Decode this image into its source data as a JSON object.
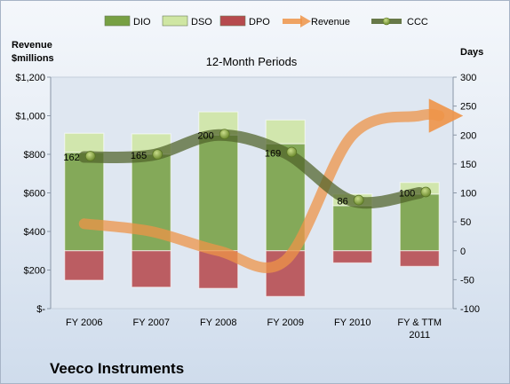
{
  "company": "Veeco Instruments",
  "chart_data": {
    "type": "bar",
    "subtitle": "12-Month Periods",
    "ylabel_left": "Revenue\n$millions",
    "ylabel_right": "Days",
    "categories": [
      "FY 2006",
      "FY 2007",
      "FY 2008",
      "FY 2009",
      "FY 2010",
      "FY & TTM\n2011"
    ],
    "left_axis": {
      "range": [
        0,
        1200
      ],
      "ticks": [
        0,
        200,
        400,
        600,
        800,
        1000,
        1200
      ],
      "tick_labels": [
        "$-",
        "$200",
        "$400",
        "$600",
        "$800",
        "$1,000",
        "$1,200"
      ]
    },
    "right_axis": {
      "range": [
        -100,
        300
      ],
      "ticks": [
        -100,
        -50,
        0,
        50,
        100,
        150,
        200,
        250,
        300
      ],
      "tick_labels": [
        "-100",
        "-50",
        "0",
        "50",
        "100",
        "150",
        "200",
        "250",
        "300"
      ]
    },
    "series": [
      {
        "name": "DIO",
        "kind": "stacked-bar",
        "axis": "right",
        "color": "#77a043",
        "values": [
          170,
          167,
          200,
          185,
          78,
          98
        ]
      },
      {
        "name": "DSO",
        "kind": "stacked-bar",
        "axis": "right",
        "color": "#cfe6a3",
        "values": [
          33,
          35,
          40,
          41,
          20,
          20
        ]
      },
      {
        "name": "DPO",
        "kind": "negative-bar",
        "axis": "right",
        "color": "#b64a4d",
        "values": [
          -51,
          -63,
          -65,
          -79,
          -21,
          -27
        ]
      },
      {
        "name": "Revenue",
        "kind": "line",
        "axis": "left",
        "color": "#ee9448",
        "values": [
          440,
          400,
          300,
          250,
          900,
          1000
        ]
      },
      {
        "name": "CCC",
        "kind": "line",
        "axis": "right",
        "color": "#4f6228",
        "values": [
          162,
          165,
          200,
          169,
          86,
          100
        ]
      }
    ],
    "ccc_labels": [
      "162",
      "165",
      "200",
      "169",
      "86",
      "100"
    ],
    "legend_position": "top",
    "grid": false
  },
  "legend": [
    {
      "label": "DIO",
      "shape": "bar",
      "fill": "#77a043"
    },
    {
      "label": "DSO",
      "shape": "bar",
      "fill": "#cfe6a3"
    },
    {
      "label": "DPO",
      "shape": "bar",
      "fill": "#b64a4d"
    },
    {
      "label": "Revenue",
      "shape": "arrow",
      "fill": "#ee9448"
    },
    {
      "label": "CCC",
      "shape": "line-dot",
      "fill": "#4f6228"
    }
  ]
}
